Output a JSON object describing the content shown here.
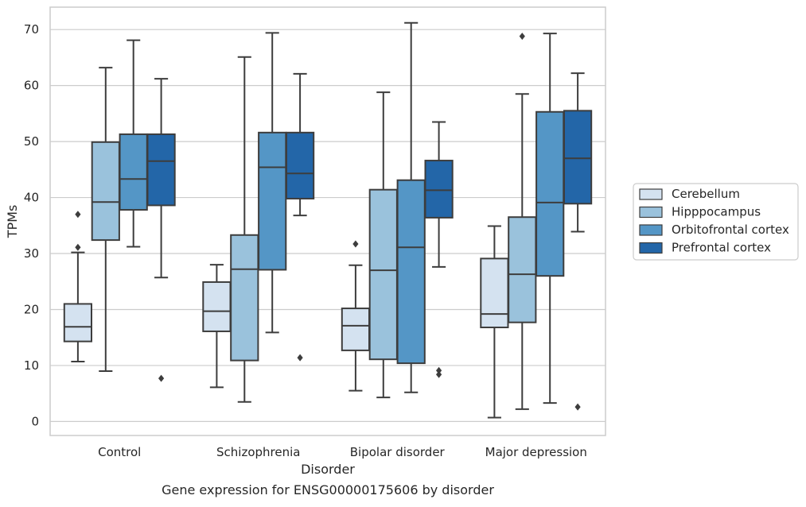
{
  "chart_data": {
    "type": "box",
    "xlabel": "Disorder",
    "ylabel": "TPMs",
    "caption": "Gene expression for ENSG00000175606 by disorder",
    "ylim": [
      -2.5,
      74
    ],
    "yticks": [
      0,
      10,
      20,
      30,
      40,
      50,
      60,
      70
    ],
    "grid": true,
    "legend_position": "right",
    "categories": [
      "Control",
      "Schizophrenia",
      "Bipolar disorder",
      "Major depression"
    ],
    "series": [
      {
        "name": "Cerebellum",
        "color": "#d4e2f0",
        "boxes": [
          {
            "whislo": 10.7,
            "q1": 14.3,
            "med": 16.9,
            "q3": 21.0,
            "whishi": 30.2,
            "fliers": [
              31.1,
              37.0
            ]
          },
          {
            "whislo": 6.1,
            "q1": 16.1,
            "med": 19.7,
            "q3": 24.9,
            "whishi": 28.0,
            "fliers": []
          },
          {
            "whislo": 5.5,
            "q1": 12.7,
            "med": 17.1,
            "q3": 20.2,
            "whishi": 27.9,
            "fliers": [
              31.7
            ]
          },
          {
            "whislo": 0.7,
            "q1": 16.8,
            "med": 19.2,
            "q3": 29.1,
            "whishi": 34.9,
            "fliers": []
          }
        ]
      },
      {
        "name": "Hipppocampus",
        "color": "#9ac2dc",
        "boxes": [
          {
            "whislo": 9.0,
            "q1": 32.4,
            "med": 39.2,
            "q3": 49.9,
            "whishi": 63.2,
            "fliers": []
          },
          {
            "whislo": 3.5,
            "q1": 10.9,
            "med": 27.2,
            "q3": 33.3,
            "whishi": 65.1,
            "fliers": []
          },
          {
            "whislo": 4.3,
            "q1": 11.1,
            "med": 27.0,
            "q3": 41.4,
            "whishi": 58.8,
            "fliers": []
          },
          {
            "whislo": 2.2,
            "q1": 17.7,
            "med": 26.3,
            "q3": 36.5,
            "whishi": 58.5,
            "fliers": [
              68.8
            ]
          }
        ]
      },
      {
        "name": "Orbitofrontal cortex",
        "color": "#5496c6",
        "boxes": [
          {
            "whislo": 31.2,
            "q1": 37.8,
            "med": 43.3,
            "q3": 51.3,
            "whishi": 68.1,
            "fliers": []
          },
          {
            "whislo": 15.9,
            "q1": 27.1,
            "med": 45.4,
            "q3": 51.6,
            "whishi": 69.4,
            "fliers": []
          },
          {
            "whislo": 5.2,
            "q1": 10.4,
            "med": 31.1,
            "q3": 43.1,
            "whishi": 71.2,
            "fliers": []
          },
          {
            "whislo": 3.3,
            "q1": 26.0,
            "med": 39.1,
            "q3": 55.3,
            "whishi": 69.3,
            "fliers": []
          }
        ]
      },
      {
        "name": "Prefrontal cortex",
        "color": "#2366a8",
        "boxes": [
          {
            "whislo": 25.7,
            "q1": 38.6,
            "med": 46.5,
            "q3": 51.3,
            "whishi": 61.2,
            "fliers": [
              7.7
            ]
          },
          {
            "whislo": 36.8,
            "q1": 39.8,
            "med": 44.3,
            "q3": 51.6,
            "whishi": 62.1,
            "fliers": [
              11.4
            ]
          },
          {
            "whislo": 27.6,
            "q1": 36.4,
            "med": 41.3,
            "q3": 46.6,
            "whishi": 53.5,
            "fliers": [
              8.4,
              9.1
            ]
          },
          {
            "whislo": 33.9,
            "q1": 38.9,
            "med": 47.0,
            "q3": 55.5,
            "whishi": 62.2,
            "fliers": [
              2.6
            ]
          }
        ]
      }
    ]
  }
}
